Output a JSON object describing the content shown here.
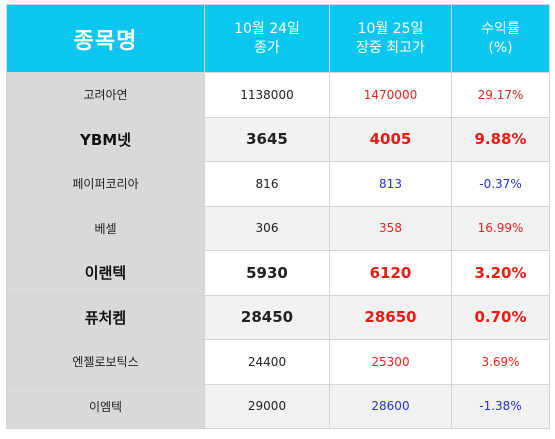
{
  "header": {
    "name_col": "종목명",
    "close_col_line1": "10월 24일",
    "close_col_line2": "종가",
    "high_col_line1": "10월 25일",
    "high_col_line2": "장중 최고가",
    "ret_col_line1": "수익률",
    "ret_col_line2": "(%)"
  },
  "colors": {
    "header_bg": "#0bc7ef",
    "up": "#e8241d",
    "down": "#2631d8"
  },
  "rows": [
    {
      "name": "고려아연",
      "close": "1138000",
      "high": "1470000",
      "ret": "29.17%",
      "dir": "up",
      "bold": false
    },
    {
      "name": "YBM넷",
      "close": "3645",
      "high": "4005",
      "ret": "9.88%",
      "dir": "up",
      "bold": true
    },
    {
      "name": "페이퍼코리아",
      "close": "816",
      "high": "813",
      "ret": "-0.37%",
      "dir": "down",
      "bold": false
    },
    {
      "name": "베셀",
      "close": "306",
      "high": "358",
      "ret": "16.99%",
      "dir": "up",
      "bold": false
    },
    {
      "name": "이랜텍",
      "close": "5930",
      "high": "6120",
      "ret": "3.20%",
      "dir": "up",
      "bold": true
    },
    {
      "name": "퓨처켐",
      "close": "28450",
      "high": "28650",
      "ret": "0.70%",
      "dir": "up",
      "bold": true
    },
    {
      "name": "엔젤로보틱스",
      "close": "24400",
      "high": "25300",
      "ret": "3.69%",
      "dir": "up",
      "bold": false
    },
    {
      "name": "이엠텍",
      "close": "29000",
      "high": "28600",
      "ret": "-1.38%",
      "dir": "down",
      "bold": false
    }
  ]
}
